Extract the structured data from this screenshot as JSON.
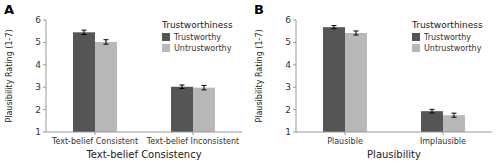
{
  "chart_data": [
    {
      "type": "bar",
      "title": "A",
      "categories": [
        "Text-belief Consistent",
        "Text-belief Inconsistent"
      ],
      "x_label": "Text-belief Consistency",
      "y_label": "Plausibility Rating (1-7)",
      "ylim": [
        1,
        6
      ],
      "yticks": [
        1,
        2,
        3,
        4,
        5,
        6
      ],
      "series": [
        {
          "name": "Trustworthy",
          "color": "#555555",
          "values": [
            5.45,
            3.02
          ],
          "errors": [
            0.1,
            0.08
          ]
        },
        {
          "name": "Untrustworthy",
          "color": "#b8b8b8",
          "values": [
            5.02,
            2.98
          ],
          "errors": [
            0.1,
            0.1
          ]
        }
      ],
      "legend_title": "Trustworthiness",
      "legend": "upper right",
      "grid": false
    },
    {
      "type": "bar",
      "title": "B",
      "categories": [
        "Plausible",
        "Implausible"
      ],
      "x_label": "Plausibility",
      "y_label": "Plausibility Rating (1-7)",
      "ylim": [
        1,
        6
      ],
      "yticks": [
        1,
        2,
        3,
        4,
        5,
        6
      ],
      "series": [
        {
          "name": "Trustworthy",
          "color": "#555555",
          "values": [
            5.68,
            1.93
          ],
          "errors": [
            0.07,
            0.08
          ]
        },
        {
          "name": "Untrustworthy",
          "color": "#b8b8b8",
          "values": [
            5.42,
            1.75
          ],
          "errors": [
            0.09,
            0.09
          ]
        }
      ],
      "legend_title": "Trustworthiness",
      "legend": "upper right",
      "grid": false
    }
  ]
}
